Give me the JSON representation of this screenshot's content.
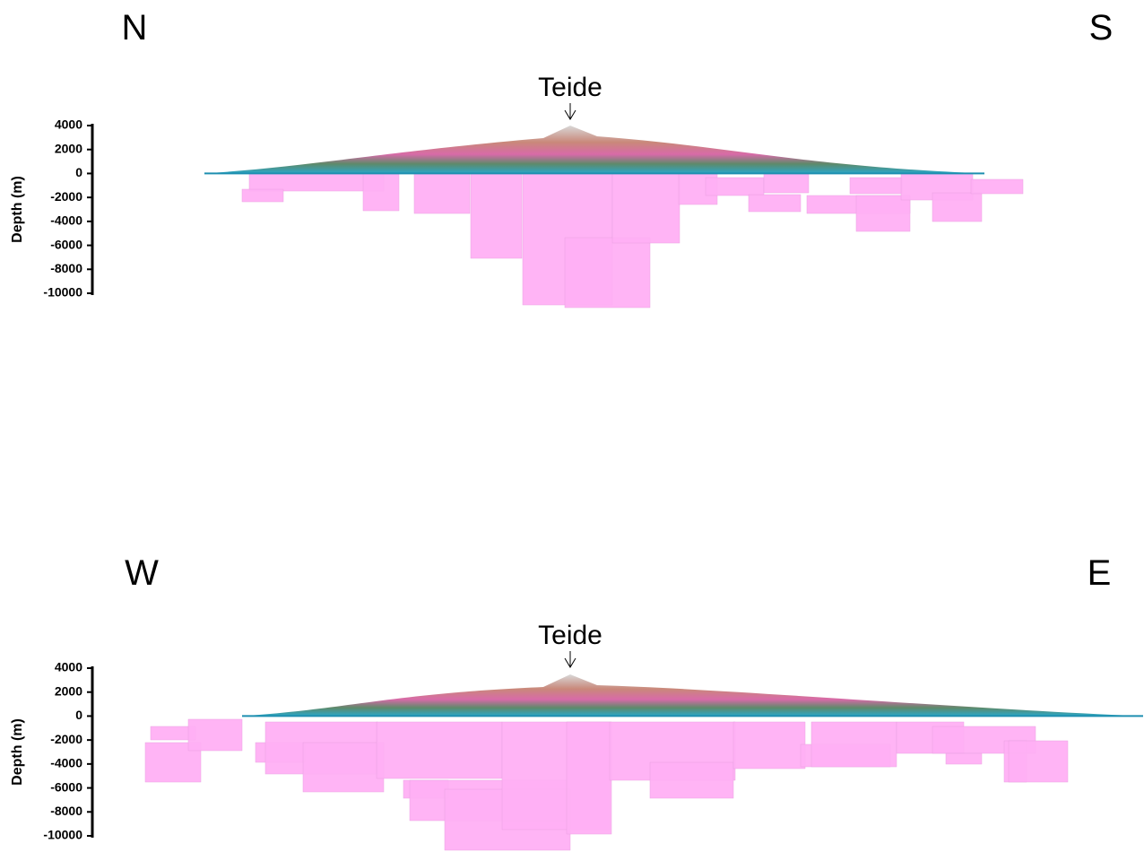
{
  "panels": [
    {
      "left_label": "N",
      "right_label": "S",
      "peak_label": "Teide",
      "axis_label": "Depth (m)",
      "ylim": [
        4000,
        -10000
      ],
      "yticks": [
        4000,
        2000,
        0,
        -2000,
        -4000,
        -6000,
        -8000,
        -10000
      ]
    },
    {
      "left_label": "W",
      "right_label": "E",
      "peak_label": "Teide",
      "axis_label": "Depth (m)",
      "ylim": [
        4000,
        -10000
      ],
      "yticks": [
        4000,
        2000,
        0,
        -2000,
        -4000,
        -6000,
        -8000,
        -10000
      ]
    }
  ]
}
